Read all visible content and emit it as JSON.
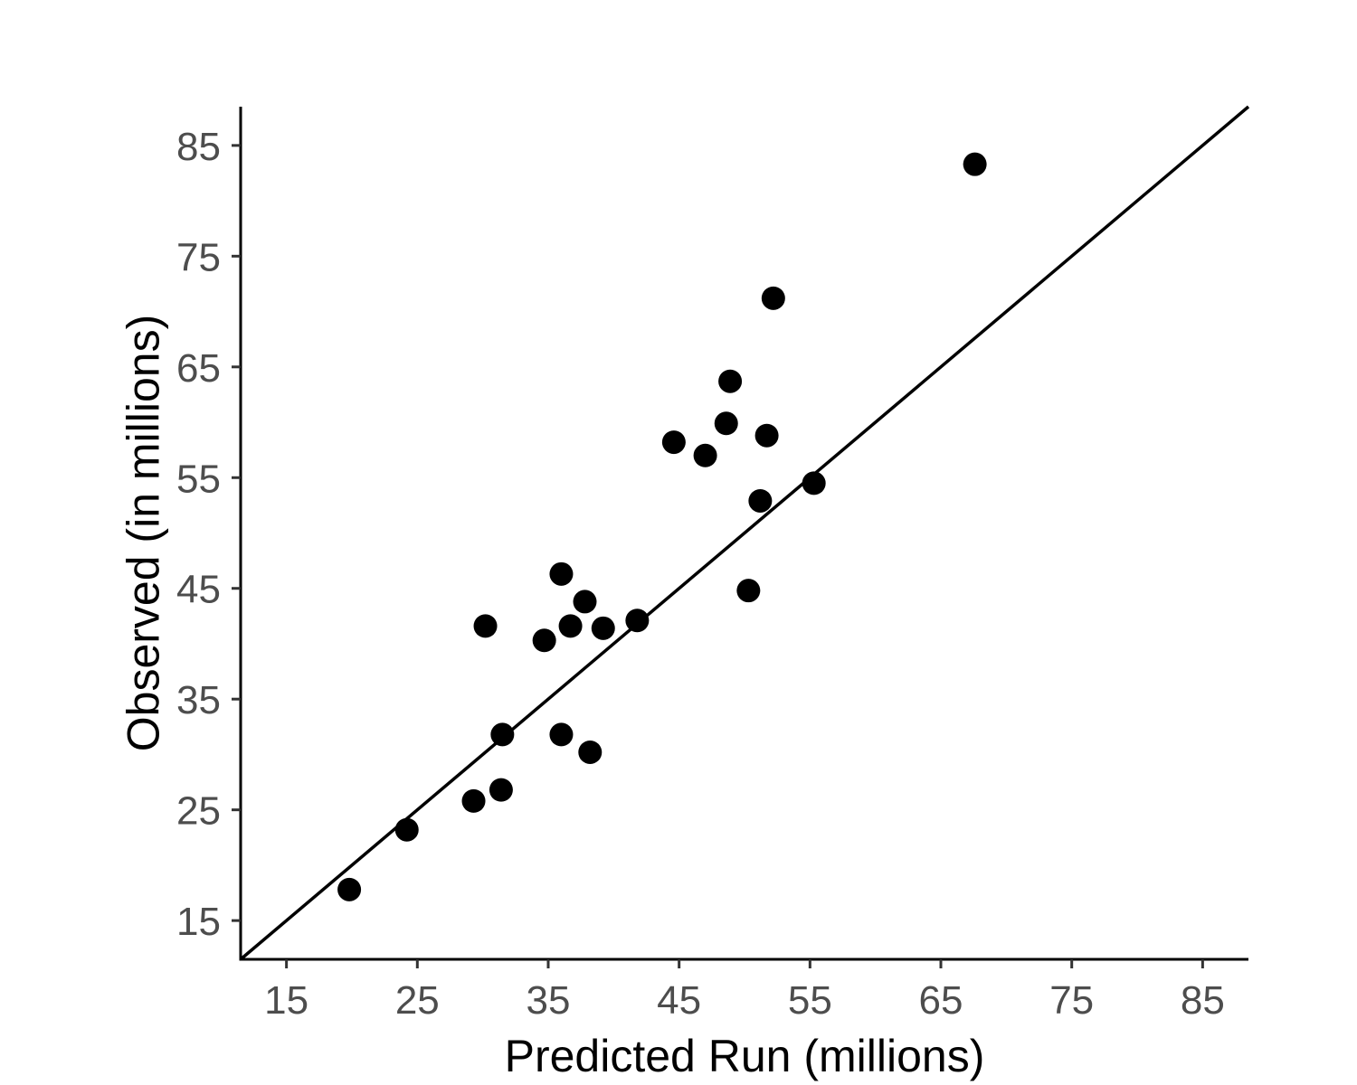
{
  "chart_data": {
    "type": "scatter",
    "title": "",
    "xlabel": "Predicted Run (millions)",
    "ylabel": "Observed (in millions)",
    "xlim": [
      11.5,
      88.5
    ],
    "ylim": [
      11.5,
      88.5
    ],
    "xticks": [
      15,
      25,
      35,
      45,
      55,
      65,
      75,
      85
    ],
    "yticks": [
      15,
      25,
      35,
      45,
      55,
      65,
      75,
      85
    ],
    "x_tick_labels": [
      "15",
      "25",
      "35",
      "45",
      "55",
      "65",
      "75",
      "85"
    ],
    "y_tick_labels": [
      "15",
      "25",
      "35",
      "45",
      "55",
      "65",
      "75",
      "85"
    ],
    "grid": false,
    "reference_line": {
      "type": "identity",
      "slope": 1,
      "intercept": 0
    },
    "point_color": "#000000",
    "points": [
      {
        "x": 19.8,
        "y": 17.8
      },
      {
        "x": 24.2,
        "y": 23.2
      },
      {
        "x": 29.3,
        "y": 25.8
      },
      {
        "x": 31.4,
        "y": 26.8
      },
      {
        "x": 31.5,
        "y": 31.8
      },
      {
        "x": 30.2,
        "y": 41.6
      },
      {
        "x": 34.7,
        "y": 40.3
      },
      {
        "x": 36.0,
        "y": 31.8
      },
      {
        "x": 36.0,
        "y": 46.3
      },
      {
        "x": 36.7,
        "y": 41.6
      },
      {
        "x": 37.8,
        "y": 43.8
      },
      {
        "x": 38.2,
        "y": 30.2
      },
      {
        "x": 39.2,
        "y": 41.4
      },
      {
        "x": 41.8,
        "y": 42.1
      },
      {
        "x": 44.6,
        "y": 58.2
      },
      {
        "x": 47.0,
        "y": 57.0
      },
      {
        "x": 48.6,
        "y": 59.9
      },
      {
        "x": 48.9,
        "y": 63.7
      },
      {
        "x": 50.3,
        "y": 44.8
      },
      {
        "x": 51.2,
        "y": 52.9
      },
      {
        "x": 51.7,
        "y": 58.8
      },
      {
        "x": 52.2,
        "y": 71.2
      },
      {
        "x": 55.3,
        "y": 54.5
      },
      {
        "x": 67.6,
        "y": 83.3
      }
    ]
  }
}
